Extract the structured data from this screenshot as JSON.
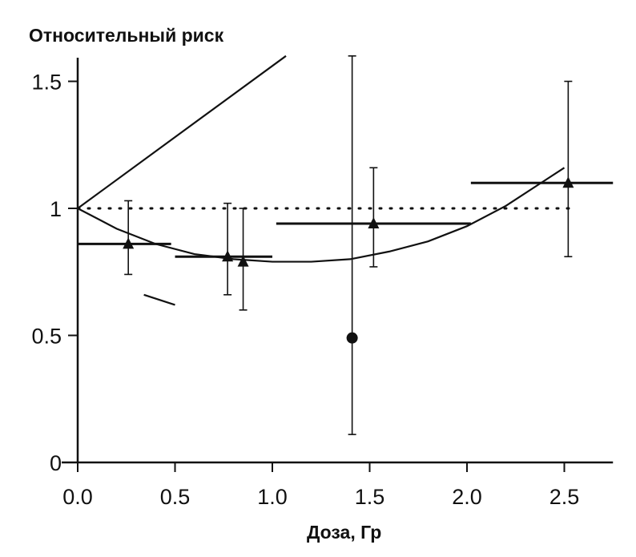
{
  "chart_data": {
    "type": "scatter",
    "title": "Относительный риск",
    "xlabel": "Доза, Гр",
    "ylabel": "",
    "xlim": [
      0,
      2.75
    ],
    "ylim": [
      0,
      1.6
    ],
    "xticks": [
      0.0,
      0.5,
      1.0,
      1.5,
      2.0,
      2.5
    ],
    "xtick_labels": [
      "0.0",
      "0.5",
      "1.0",
      "1.5",
      "2.0",
      "2.5"
    ],
    "yticks": [
      0,
      0.5,
      1,
      1.5
    ],
    "ytick_labels": [
      "0",
      "0.5",
      "1",
      "1.5"
    ],
    "grid": false,
    "reference_line": {
      "y": 1.0,
      "style": "dotted"
    },
    "series": [
      {
        "marker": "triangle",
        "points": [
          {
            "x": 0.26,
            "y": 0.86,
            "lo": 0.74,
            "hi": 1.03,
            "xlo": 0.0,
            "xhi": 0.48
          },
          {
            "x": 0.77,
            "y": 0.81,
            "lo": 0.66,
            "hi": 1.02,
            "xlo": 0.5,
            "xhi": 1.0
          },
          {
            "x": 0.85,
            "y": 0.79,
            "lo": 0.6,
            "hi": 1.0
          },
          {
            "x": 1.52,
            "y": 0.94,
            "lo": 0.77,
            "hi": 1.16,
            "xlo": 1.02,
            "xhi": 2.02
          },
          {
            "x": 2.52,
            "y": 1.1,
            "lo": 0.81,
            "hi": 1.5,
            "xlo": 2.02,
            "xhi": 2.75
          }
        ]
      },
      {
        "marker": "circle",
        "points": [
          {
            "x": 1.41,
            "y": 0.49,
            "lo": 0.11,
            "hi": 1.6
          }
        ]
      }
    ],
    "fit_lines": [
      {
        "type": "linear",
        "x": [
          0.0,
          1.07
        ],
        "y": [
          1.0,
          1.6
        ]
      },
      {
        "type": "quadratic",
        "x": [
          0.0,
          0.2,
          0.4,
          0.6,
          0.8,
          1.0,
          1.2,
          1.4,
          1.6,
          1.8,
          2.0,
          2.2,
          2.4,
          2.5
        ],
        "y": [
          1.0,
          0.92,
          0.86,
          0.82,
          0.8,
          0.79,
          0.79,
          0.8,
          0.83,
          0.87,
          0.93,
          1.01,
          1.11,
          1.16
        ]
      }
    ],
    "stray_segment": {
      "x": [
        0.34,
        0.5
      ],
      "y": [
        0.66,
        0.62
      ]
    }
  }
}
